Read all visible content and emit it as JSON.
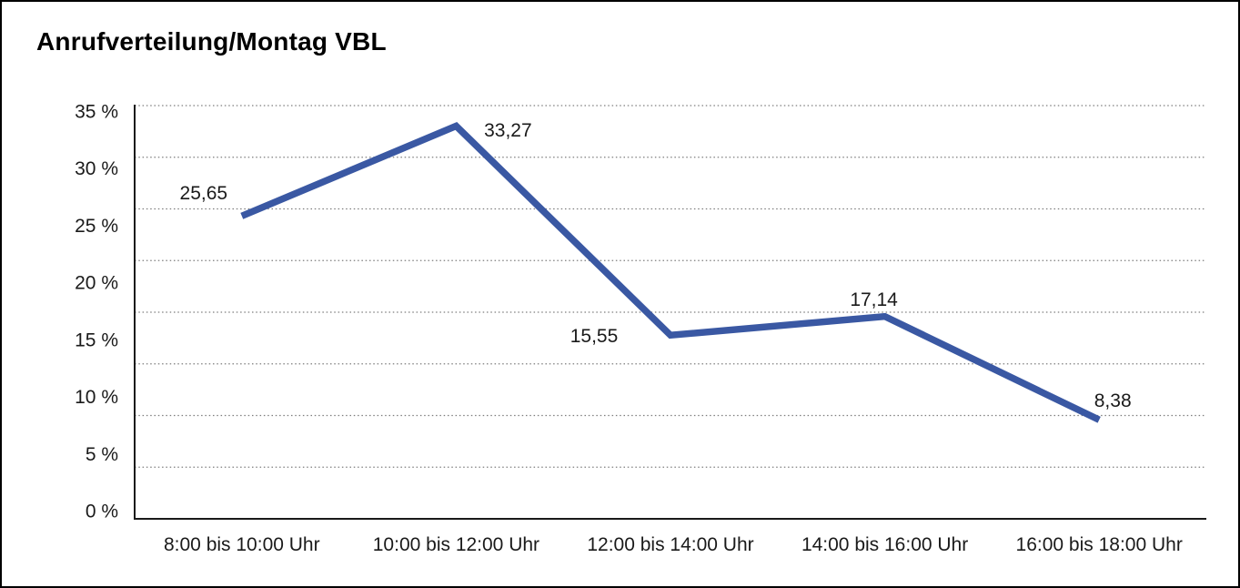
{
  "chart_data": {
    "type": "line",
    "title": "Anrufverteilung/Montag VBL",
    "categories": [
      "8:00 bis 10:00 Uhr",
      "10:00 bis 12:00 Uhr",
      "12:00 bis 14:00 Uhr",
      "14:00 bis 16:00 Uhr",
      "16:00 bis 18:00 Uhr"
    ],
    "values": [
      25.65,
      33.27,
      15.55,
      17.14,
      8.38
    ],
    "point_labels": [
      "25,65",
      "33,27",
      "15,55",
      "17,14",
      "8,38"
    ],
    "xlabel": "",
    "ylabel": "",
    "ylim": [
      0,
      35
    ],
    "y_tick_step": 5,
    "y_tick_labels": [
      "35 %",
      "30 %",
      "25 %",
      "20 %",
      "15 %",
      "10 %",
      "5 %",
      "0 %"
    ],
    "grid": "horizontal-dotted",
    "grid_divisions": 8,
    "legend": "none",
    "colors": {
      "line": "#3a58a3",
      "grid": "#7d7d7d",
      "axis": "#1a1a1a",
      "text": "#1a1a1a",
      "background": "#ffffff",
      "border": "#000000"
    }
  }
}
